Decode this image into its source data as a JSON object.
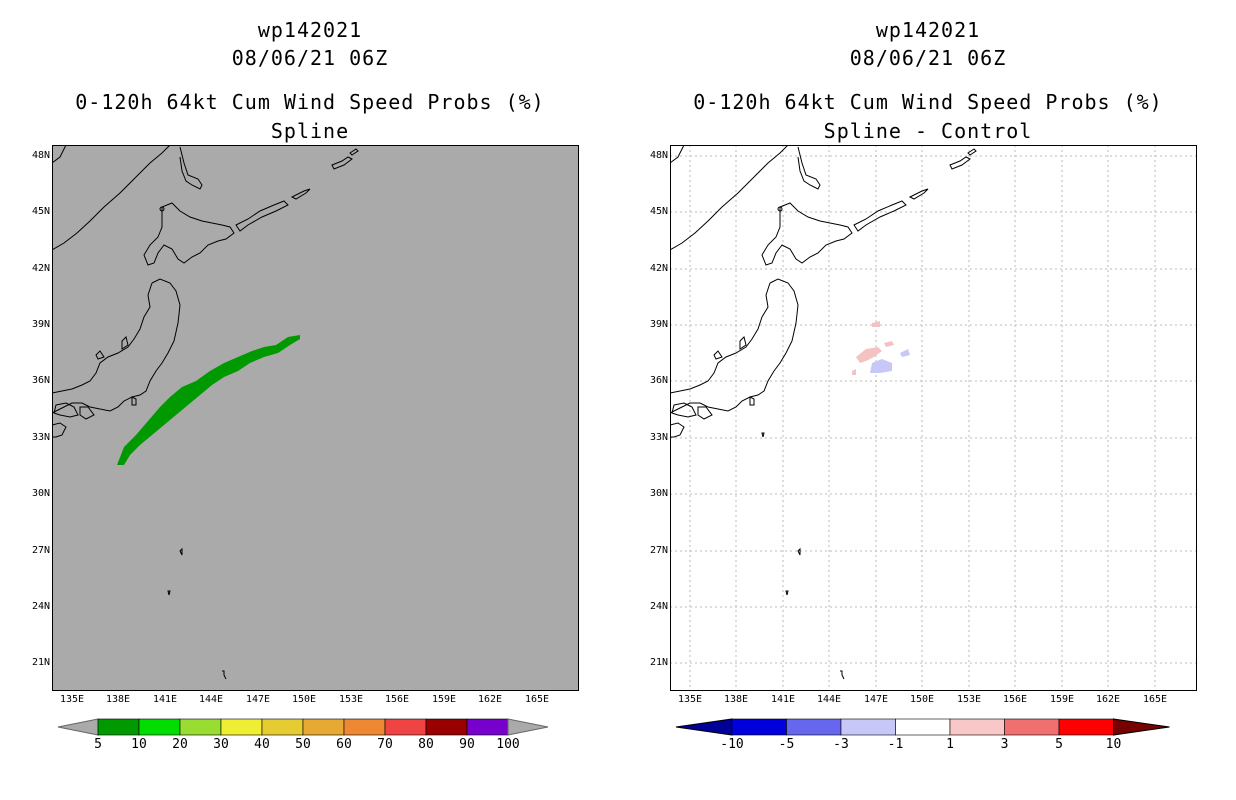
{
  "left_panel": {
    "title_line1": "wp142021",
    "title_line2": "08/06/21 06Z",
    "title_line3": "0-120h 64kt Cum Wind Speed Probs (%)",
    "title_line4": "Spline",
    "fill_color": "#aaaaaa",
    "feature_color": "#009900",
    "colorbar": {
      "labels": [
        "5",
        "10",
        "20",
        "30",
        "40",
        "50",
        "60",
        "70",
        "80",
        "90",
        "100"
      ],
      "colors": [
        "#009900",
        "#00dd00",
        "#99dd33",
        "#eeee33",
        "#e6cc33",
        "#e6aa33",
        "#ee8833",
        "#ee4444",
        "#990000",
        "#7700cc"
      ],
      "end_color": "#aaaaaa"
    }
  },
  "right_panel": {
    "title_line1": "wp142021",
    "title_line2": "08/06/21 06Z",
    "title_line3": "0-120h 64kt Cum Wind Speed Probs (%)",
    "title_line4": "Spline - Control",
    "fill_color": "#ffffff",
    "positive_color": "#f4c2c2",
    "negative_color": "#c8c8f8",
    "colorbar": {
      "labels": [
        "-10",
        "-5",
        "-3",
        "-1",
        "1",
        "3",
        "5",
        "10"
      ],
      "colors": [
        "#0000dd",
        "#6666ee",
        "#c8c8f8",
        "#ffffff",
        "#f8c8c8",
        "#f07070",
        "#ff0000"
      ],
      "low_color": "#000099",
      "high_color": "#770000"
    }
  },
  "axes": {
    "lat_labels": [
      "48N",
      "45N",
      "42N",
      "39N",
      "36N",
      "33N",
      "30N",
      "27N",
      "24N",
      "21N"
    ],
    "lon_labels": [
      "135E",
      "138E",
      "141E",
      "144E",
      "147E",
      "150E",
      "153E",
      "156E",
      "159E",
      "162E",
      "165E"
    ]
  }
}
